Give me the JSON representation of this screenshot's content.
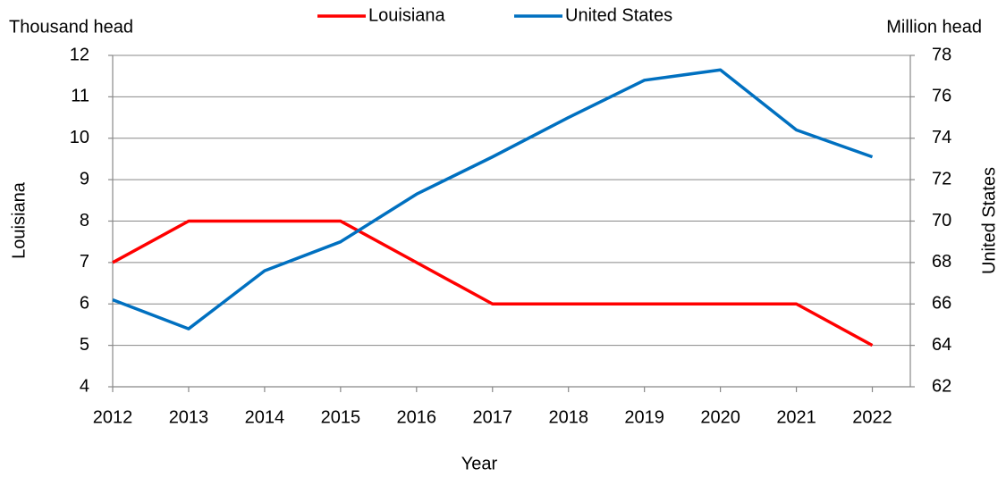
{
  "chart_data": {
    "type": "line",
    "left_unit": "Thousand head",
    "right_unit": "Million head",
    "ylabel": "Louisiana",
    "y2label": "United States",
    "xlabel": "Year",
    "x": [
      2012,
      2013,
      2014,
      2015,
      2016,
      2017,
      2018,
      2019,
      2020,
      2021,
      2022
    ],
    "xlim": [
      2012,
      2022.5
    ],
    "xticks": [
      2012,
      2013,
      2014,
      2015,
      2016,
      2017,
      2018,
      2019,
      2020,
      2021,
      2022
    ],
    "ylim": [
      4,
      12
    ],
    "yticks": [
      4,
      5,
      6,
      7,
      8,
      9,
      10,
      11,
      12
    ],
    "y2lim": [
      62,
      78
    ],
    "y2ticks": [
      62,
      64,
      66,
      68,
      70,
      72,
      74,
      76,
      78
    ],
    "grid": true,
    "legend": "top",
    "series": [
      {
        "name": "Louisiana",
        "color": "#ff0000",
        "values": [
          7,
          8,
          8,
          8,
          7,
          6,
          6,
          6,
          6,
          6,
          5
        ]
      },
      {
        "name": "United States",
        "color": "#0070c0",
        "axis": "y2",
        "values": [
          66.2,
          64.8,
          67.6,
          69.0,
          71.3,
          73.1,
          75.0,
          76.8,
          77.3,
          74.4,
          73.1
        ]
      }
    ]
  }
}
